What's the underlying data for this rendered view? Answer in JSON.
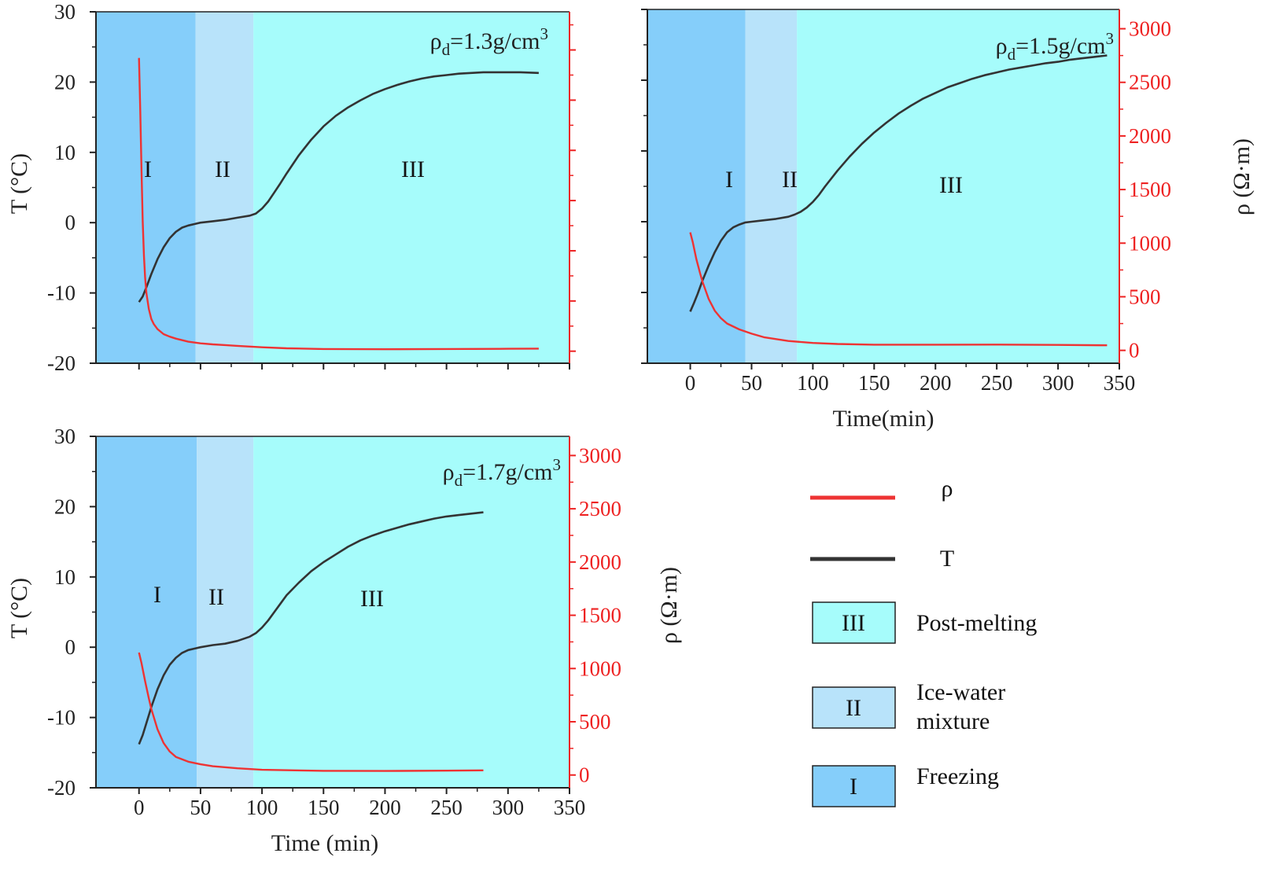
{
  "colors": {
    "zone_I": "#85cefa",
    "zone_II": "#b8e3fa",
    "zone_III": "#a6fcfb",
    "rho_line": "#ee3333",
    "rho_axis": "#ee2222",
    "t_line": "#333333"
  },
  "chart_data": [
    {
      "id": "a",
      "type": "line",
      "title": "ρd=1.3g/cm3",
      "title_main": "ρ",
      "title_sub": "d",
      "title_rest": "=1.3g/cm",
      "title_sup": "3",
      "xlabel": "",
      "ylabel_left": "T (°C)",
      "ylabel_right": "",
      "xlim": [
        -35,
        350
      ],
      "ylim_left": [
        -20,
        30
      ],
      "ylim_right": [
        -120,
        3380
      ],
      "x_ticks": [],
      "y_left_ticks": [
        "30",
        "20",
        "10",
        "0",
        "-10",
        "-20"
      ],
      "y_right_ticks": [],
      "zones": [
        {
          "label": "I",
          "from": -35,
          "to": 46
        },
        {
          "label": "II",
          "from": 46,
          "to": 93
        },
        {
          "label": "III",
          "from": 93,
          "to": 350
        }
      ],
      "series": [
        {
          "name": "T",
          "axis": "left",
          "x": [
            0,
            3,
            6,
            10,
            15,
            20,
            25,
            30,
            35,
            40,
            45,
            50,
            55,
            60,
            70,
            80,
            90,
            95,
            100,
            105,
            110,
            115,
            120,
            130,
            140,
            150,
            160,
            170,
            180,
            190,
            200,
            210,
            220,
            230,
            240,
            250,
            260,
            270,
            280,
            290,
            300,
            310,
            325
          ],
          "y": [
            -11.3,
            -10.5,
            -9.2,
            -7.3,
            -5.2,
            -3.5,
            -2.2,
            -1.3,
            -0.7,
            -0.4,
            -0.2,
            0.0,
            0.1,
            0.2,
            0.4,
            0.7,
            1.0,
            1.3,
            2.0,
            3.0,
            4.3,
            5.6,
            7.0,
            9.6,
            11.8,
            13.7,
            15.2,
            16.4,
            17.4,
            18.3,
            19.0,
            19.6,
            20.1,
            20.5,
            20.8,
            21.0,
            21.2,
            21.3,
            21.4,
            21.4,
            21.4,
            21.4,
            21.3
          ]
        },
        {
          "name": "ρ",
          "axis": "right",
          "x": [
            0,
            1,
            2,
            3,
            4,
            5,
            6,
            8,
            10,
            12,
            15,
            20,
            25,
            30,
            40,
            50,
            60,
            70,
            80,
            100,
            120,
            150,
            200,
            250,
            300,
            325
          ],
          "y": [
            2920,
            2400,
            1800,
            1300,
            950,
            730,
            580,
            420,
            320,
            270,
            220,
            170,
            145,
            125,
            100,
            80,
            65,
            55,
            48,
            38,
            32,
            28,
            24,
            22,
            20,
            20
          ]
        }
      ]
    },
    {
      "id": "b",
      "type": "line",
      "title": "ρd=1.5g/cm3",
      "title_main": "ρ",
      "title_sub": "d",
      "title_rest": "=1.5g/cm",
      "title_sup": "3",
      "xlabel": "Time(min)",
      "ylabel_left": "",
      "ylabel_right": "ρ (Ω·m)",
      "xlim": [
        -35,
        350
      ],
      "ylim_left": [
        -20,
        30
      ],
      "ylim_right": [
        -120,
        3180
      ],
      "x_ticks": [
        "0",
        "50",
        "100",
        "150",
        "200",
        "250",
        "300",
        "350"
      ],
      "y_left_ticks": [],
      "y_right_ticks": [
        "0",
        "500",
        "1000",
        "1500",
        "2000",
        "2500",
        "3000"
      ],
      "zones": [
        {
          "label": "I",
          "from": -35,
          "to": 45
        },
        {
          "label": "II",
          "from": 45,
          "to": 87
        },
        {
          "label": "III",
          "from": 87,
          "to": 350
        }
      ],
      "series": [
        {
          "name": "T",
          "axis": "left",
          "x": [
            0,
            3,
            6,
            10,
            15,
            20,
            25,
            30,
            35,
            40,
            45,
            50,
            60,
            70,
            80,
            85,
            90,
            95,
            100,
            105,
            110,
            120,
            130,
            140,
            150,
            160,
            170,
            180,
            190,
            200,
            210,
            220,
            230,
            240,
            250,
            260,
            270,
            280,
            290,
            300,
            310,
            320,
            330,
            340
          ],
          "y": [
            -12.7,
            -11.5,
            -10.2,
            -8.3,
            -6.2,
            -4.3,
            -2.7,
            -1.5,
            -0.8,
            -0.4,
            -0.1,
            0.0,
            0.2,
            0.4,
            0.7,
            1.0,
            1.4,
            2.0,
            2.8,
            3.8,
            5.0,
            7.2,
            9.2,
            11.0,
            12.6,
            14.0,
            15.3,
            16.4,
            17.4,
            18.2,
            19.0,
            19.6,
            20.2,
            20.7,
            21.1,
            21.5,
            21.8,
            22.1,
            22.4,
            22.6,
            22.9,
            23.1,
            23.3,
            23.5
          ]
        },
        {
          "name": "ρ",
          "axis": "right",
          "x": [
            0,
            2,
            5,
            8,
            10,
            15,
            20,
            25,
            30,
            40,
            50,
            60,
            80,
            100,
            120,
            150,
            200,
            250,
            300,
            340
          ],
          "y": [
            1100,
            1010,
            850,
            720,
            640,
            480,
            370,
            300,
            250,
            190,
            150,
            120,
            90,
            75,
            65,
            55,
            50,
            48,
            46,
            46
          ]
        }
      ]
    },
    {
      "id": "c",
      "type": "line",
      "title": "ρd=1.7g/cm3",
      "title_main": "ρ",
      "title_sub": "d",
      "title_rest": "=1.7g/cm",
      "title_sup": "3",
      "xlabel": "Time (min)",
      "ylabel_left": "T (°C)",
      "ylabel_right": "ρ (Ω·m)",
      "xlim": [
        -35,
        350
      ],
      "ylim_left": [
        -20,
        30
      ],
      "ylim_right": [
        -120,
        3180
      ],
      "x_ticks": [
        "0",
        "50",
        "100",
        "150",
        "200",
        "250",
        "300",
        "350"
      ],
      "y_left_ticks": [
        "30",
        "20",
        "10",
        "0",
        "-10",
        "-20"
      ],
      "y_right_ticks": [
        "0",
        "500",
        "1000",
        "1500",
        "2000",
        "2500",
        "3000"
      ],
      "zones": [
        {
          "label": "I",
          "from": -35,
          "to": 47
        },
        {
          "label": "II",
          "from": 47,
          "to": 93
        },
        {
          "label": "III",
          "from": 93,
          "to": 350
        }
      ],
      "series": [
        {
          "name": "T",
          "axis": "left",
          "x": [
            0,
            3,
            6,
            10,
            15,
            20,
            25,
            30,
            35,
            40,
            45,
            50,
            60,
            70,
            80,
            90,
            95,
            100,
            105,
            110,
            115,
            120,
            130,
            140,
            150,
            160,
            170,
            180,
            190,
            200,
            210,
            220,
            230,
            240,
            250,
            260,
            270,
            280
          ],
          "y": [
            -13.8,
            -12.5,
            -10.8,
            -8.5,
            -6.0,
            -4.0,
            -2.5,
            -1.5,
            -0.8,
            -0.4,
            -0.2,
            0.0,
            0.3,
            0.5,
            0.9,
            1.5,
            2.0,
            2.8,
            3.8,
            5.0,
            6.2,
            7.4,
            9.2,
            10.8,
            12.1,
            13.2,
            14.3,
            15.2,
            15.9,
            16.5,
            17.0,
            17.5,
            17.9,
            18.3,
            18.6,
            18.8,
            19.0,
            19.2
          ]
        },
        {
          "name": "ρ",
          "axis": "right",
          "x": [
            0,
            2,
            5,
            8,
            10,
            15,
            20,
            25,
            30,
            40,
            50,
            60,
            80,
            100,
            150,
            200,
            250,
            280
          ],
          "y": [
            1150,
            1050,
            880,
            720,
            620,
            430,
            300,
            220,
            170,
            120,
            95,
            80,
            65,
            55,
            45,
            40,
            38,
            38
          ]
        }
      ]
    }
  ],
  "legend": {
    "items": [
      {
        "kind": "line",
        "label": "ρ",
        "color_key": "rho_line"
      },
      {
        "kind": "line",
        "label": "T",
        "color_key": "t_line"
      },
      {
        "kind": "box",
        "box_label": "III",
        "line1": "Post-melting",
        "line2": "",
        "color_key": "zone_III"
      },
      {
        "kind": "box",
        "box_label": "II",
        "line1": "Ice-water",
        "line2": "mixture",
        "color_key": "zone_II"
      },
      {
        "kind": "box",
        "box_label": "I",
        "line1": "Freezing",
        "line2": "",
        "color_key": "zone_I"
      }
    ]
  }
}
